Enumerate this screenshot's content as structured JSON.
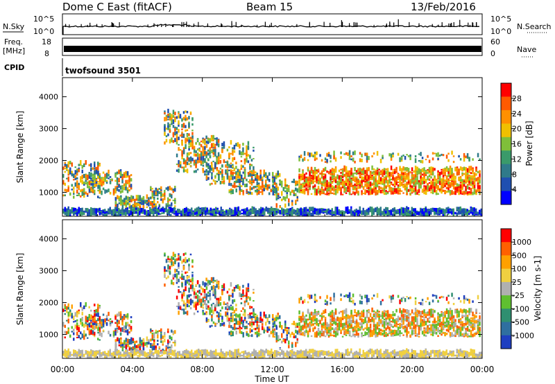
{
  "header": {
    "title": "Dome C East (fitACF)",
    "beam": "Beam 15",
    "date": "13/Feb/2016"
  },
  "top_panels": {
    "nsky_label": "N.Sky",
    "nsearch_label": "N.Search",
    "nsky_ticks": [
      "10^5",
      "10^0"
    ],
    "freq_label_line1": "Freq.",
    "freq_label_line2": "[MHz]",
    "freq_ticks": [
      "18",
      "8"
    ],
    "nave_label": "Nave",
    "nave_ticks": [
      "60",
      "0"
    ],
    "cpid_label": "CPID",
    "cpid_value": "twofsound 3501"
  },
  "colors": {
    "power_scale": [
      "#0000ff",
      "#1f4fb0",
      "#2f7a8a",
      "#3a9a6a",
      "#7fbf3a",
      "#f0c000",
      "#ff9000",
      "#ff5a00",
      "#ff0000"
    ],
    "velocity_scale": [
      "#1f3fc0",
      "#2f6fa0",
      "#2f8f70",
      "#5fbf30",
      "#b0b0b0",
      "#f0d040",
      "#ffa000",
      "#ff6000",
      "#ff0000"
    ]
  },
  "chart_data": [
    {
      "type": "heatmap",
      "name": "power-panel",
      "xlabel": "",
      "ylabel": "Slant Range [km]",
      "yticks": [
        "4000",
        "3000",
        "2000",
        "1000"
      ],
      "ylim": [
        250,
        4600
      ],
      "colorbar_label": "Power [dB]",
      "colorbar_ticks": [
        "28",
        "24",
        "20",
        "16",
        "12",
        "8",
        "4"
      ],
      "colorbar_range": [
        0,
        32
      ]
    },
    {
      "type": "heatmap",
      "name": "velocity-panel",
      "xlabel": "Time UT",
      "ylabel": "Slant Range [km]",
      "yticks": [
        "4000",
        "3000",
        "2000",
        "1000"
      ],
      "ylim": [
        250,
        4600
      ],
      "xticks": [
        "00:00",
        "04:00",
        "08:00",
        "12:00",
        "16:00",
        "20:00",
        "00:00"
      ],
      "colorbar_label": "Velocity [m s-1]",
      "colorbar_ticks": [
        "1000",
        "500",
        "100",
        "25",
        "-25",
        "-100",
        "-500",
        "-1000"
      ]
    }
  ]
}
